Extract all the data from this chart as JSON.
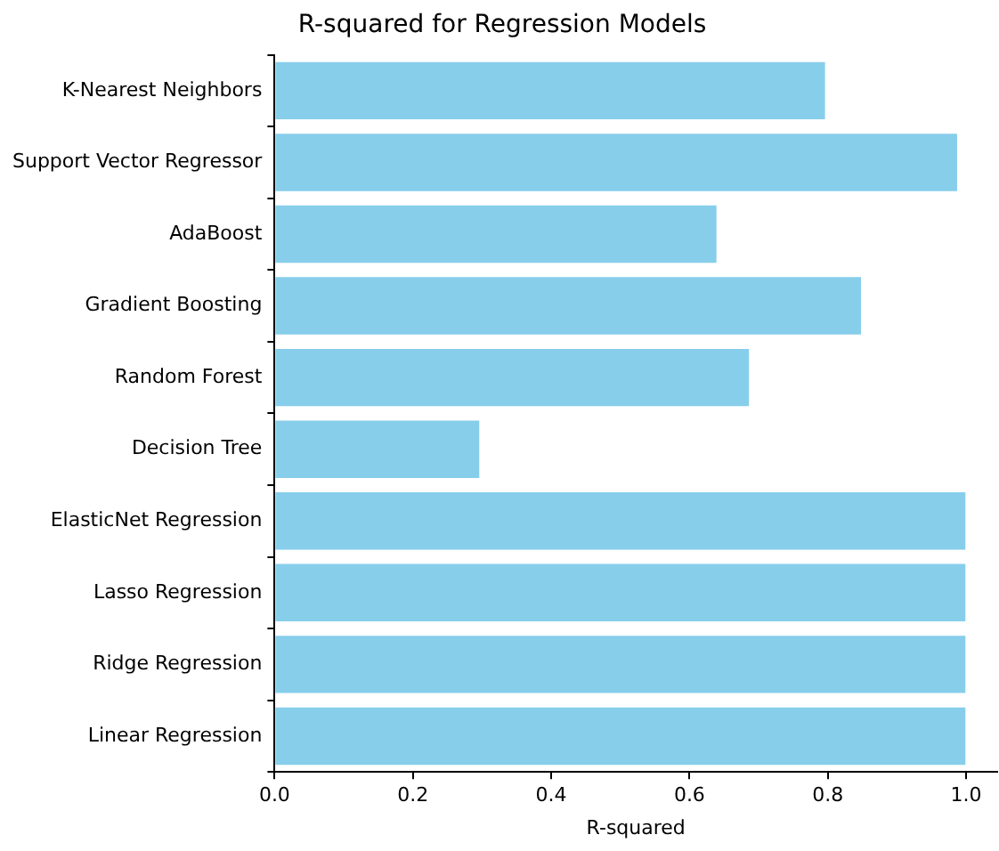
{
  "chart_data": {
    "type": "bar",
    "orientation": "horizontal",
    "title": "R-squared for Regression Models",
    "xlabel": "R-squared",
    "categories": [
      "K-Nearest Neighbors",
      "Support Vector Regressor",
      "AdaBoost",
      "Gradient Boosting",
      "Random Forest",
      "Decision Tree",
      "ElasticNet Regression",
      "Lasso Regression",
      "Ridge Regression",
      "Linear Regression"
    ],
    "values": [
      0.796,
      0.987,
      0.639,
      0.848,
      0.686,
      0.296,
      0.999,
      0.999,
      0.999,
      0.999
    ],
    "color": "#87ceeb",
    "xlim": [
      0,
      1.045
    ],
    "xticks": [
      {
        "value": 0,
        "label": "0.0"
      },
      {
        "value": 0.2,
        "label": "0.2"
      },
      {
        "value": 0.4,
        "label": "0.4"
      },
      {
        "value": 0.6,
        "label": "0.6"
      },
      {
        "value": 0.8,
        "label": "0.8"
      },
      {
        "value": 1,
        "label": "1.0"
      }
    ],
    "grid": false,
    "legend": false
  }
}
